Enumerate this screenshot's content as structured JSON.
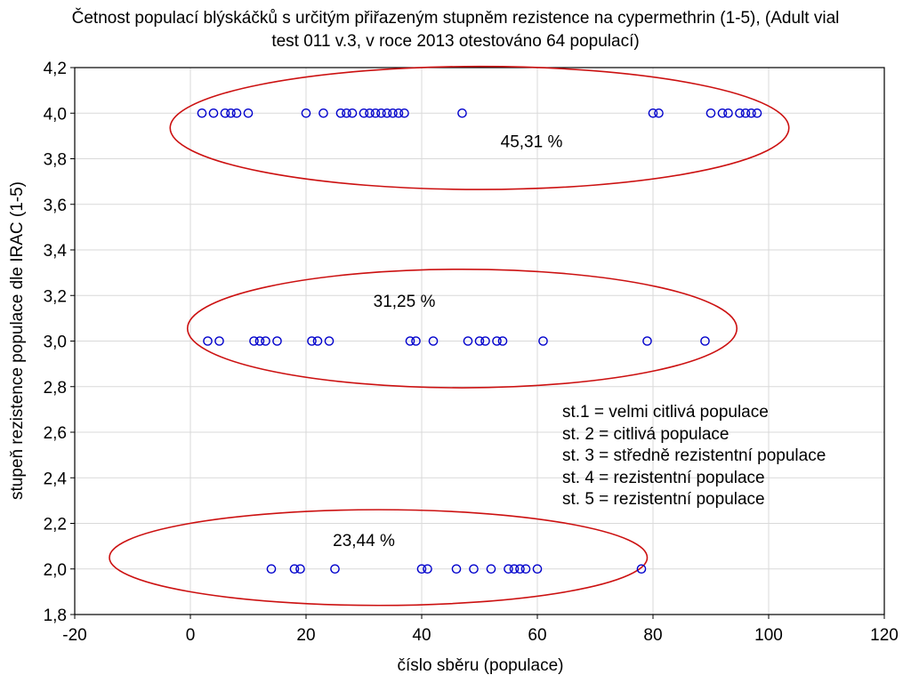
{
  "chart_data": {
    "type": "scatter",
    "title_lines": [
      "Četnost populací blýskáčků s určitým přiřazeným stupněm rezistence na cypermethrin (1-5), (Adult vial",
      "test 011 v.3, v roce 2013 otestováno 64 populací)"
    ],
    "xlabel": "číslo sběru (populace)",
    "ylabel": "stupeň rezistence populace dle IRAC (1-5)",
    "xlim": [
      -20,
      120
    ],
    "ylim": [
      1.8,
      4.2
    ],
    "x_ticks": [
      -20,
      0,
      20,
      40,
      60,
      80,
      100,
      120
    ],
    "y_ticks": [
      1.8,
      2.0,
      2.2,
      2.4,
      2.6,
      2.8,
      3.0,
      3.2,
      3.4,
      3.6,
      3.8,
      4.0,
      4.2
    ],
    "x_tick_labels": [
      "-20",
      "0",
      "20",
      "40",
      "60",
      "80",
      "100",
      "120"
    ],
    "y_tick_labels": [
      "1,8",
      "2,0",
      "2,2",
      "2,4",
      "2,6",
      "2,8",
      "3,0",
      "3,2",
      "3,4",
      "3,6",
      "3,8",
      "4,0",
      "4,2"
    ],
    "grid": true,
    "marker": "open-circle",
    "marker_color": "#0000cc",
    "ellipse_color": "#cc1111",
    "points": [
      {
        "x": 2,
        "y": 4.0
      },
      {
        "x": 4,
        "y": 4.0
      },
      {
        "x": 6,
        "y": 4.0
      },
      {
        "x": 7,
        "y": 4.0
      },
      {
        "x": 8,
        "y": 4.0
      },
      {
        "x": 10,
        "y": 4.0
      },
      {
        "x": 20,
        "y": 4.0
      },
      {
        "x": 23,
        "y": 4.0
      },
      {
        "x": 26,
        "y": 4.0
      },
      {
        "x": 27,
        "y": 4.0
      },
      {
        "x": 28,
        "y": 4.0
      },
      {
        "x": 30,
        "y": 4.0
      },
      {
        "x": 31,
        "y": 4.0
      },
      {
        "x": 32,
        "y": 4.0
      },
      {
        "x": 33,
        "y": 4.0
      },
      {
        "x": 34,
        "y": 4.0
      },
      {
        "x": 35,
        "y": 4.0
      },
      {
        "x": 36,
        "y": 4.0
      },
      {
        "x": 37,
        "y": 4.0
      },
      {
        "x": 47,
        "y": 4.0
      },
      {
        "x": 80,
        "y": 4.0
      },
      {
        "x": 81,
        "y": 4.0
      },
      {
        "x": 90,
        "y": 4.0
      },
      {
        "x": 92,
        "y": 4.0
      },
      {
        "x": 93,
        "y": 4.0
      },
      {
        "x": 95,
        "y": 4.0
      },
      {
        "x": 96,
        "y": 4.0
      },
      {
        "x": 97,
        "y": 4.0
      },
      {
        "x": 98,
        "y": 4.0
      },
      {
        "x": 3,
        "y": 3.0
      },
      {
        "x": 5,
        "y": 3.0
      },
      {
        "x": 11,
        "y": 3.0
      },
      {
        "x": 12,
        "y": 3.0
      },
      {
        "x": 13,
        "y": 3.0
      },
      {
        "x": 15,
        "y": 3.0
      },
      {
        "x": 21,
        "y": 3.0
      },
      {
        "x": 22,
        "y": 3.0
      },
      {
        "x": 24,
        "y": 3.0
      },
      {
        "x": 38,
        "y": 3.0
      },
      {
        "x": 39,
        "y": 3.0
      },
      {
        "x": 42,
        "y": 3.0
      },
      {
        "x": 48,
        "y": 3.0
      },
      {
        "x": 50,
        "y": 3.0
      },
      {
        "x": 51,
        "y": 3.0
      },
      {
        "x": 53,
        "y": 3.0
      },
      {
        "x": 54,
        "y": 3.0
      },
      {
        "x": 61,
        "y": 3.0
      },
      {
        "x": 79,
        "y": 3.0
      },
      {
        "x": 89,
        "y": 3.0
      },
      {
        "x": 14,
        "y": 2.0
      },
      {
        "x": 18,
        "y": 2.0
      },
      {
        "x": 19,
        "y": 2.0
      },
      {
        "x": 25,
        "y": 2.0
      },
      {
        "x": 40,
        "y": 2.0
      },
      {
        "x": 41,
        "y": 2.0
      },
      {
        "x": 46,
        "y": 2.0
      },
      {
        "x": 49,
        "y": 2.0
      },
      {
        "x": 52,
        "y": 2.0
      },
      {
        "x": 55,
        "y": 2.0
      },
      {
        "x": 56,
        "y": 2.0
      },
      {
        "x": 57,
        "y": 2.0
      },
      {
        "x": 58,
        "y": 2.0
      },
      {
        "x": 60,
        "y": 2.0
      },
      {
        "x": 78,
        "y": 2.0
      }
    ],
    "ellipses": [
      {
        "name": "group-4",
        "cx": 50,
        "cy": 3.935,
        "rx": 53.5,
        "ry": 0.27
      },
      {
        "name": "group-3",
        "cx": 47,
        "cy": 3.055,
        "rx": 47.5,
        "ry": 0.26
      },
      {
        "name": "group-2",
        "cx": 32.5,
        "cy": 2.05,
        "rx": 46.5,
        "ry": 0.21
      }
    ],
    "annotations": [
      {
        "text": "45,31 %",
        "x": 59,
        "y": 3.85
      },
      {
        "text": "31,25 %",
        "x": 37,
        "y": 3.15
      },
      {
        "text": "23,44 %",
        "x": 30,
        "y": 2.1
      }
    ],
    "legend_text": [
      "st.1 = velmi citlivá populace",
      "st. 2 = citlivá populace",
      "st. 3 = středně rezistentní populace",
      "st. 4 = rezistentní populace",
      "st. 5 = rezistentní populace"
    ],
    "legend_position": "middle-right"
  }
}
